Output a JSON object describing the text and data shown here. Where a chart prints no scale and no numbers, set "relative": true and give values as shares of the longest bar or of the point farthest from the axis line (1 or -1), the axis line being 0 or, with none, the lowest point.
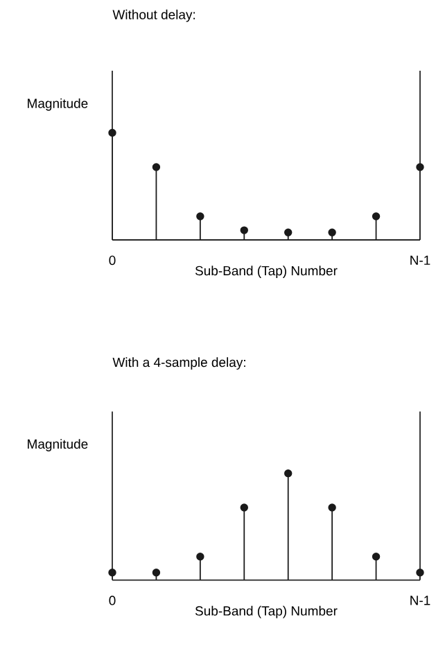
{
  "chart_data": [
    {
      "type": "lollipop",
      "title": "Without delay:",
      "ylabel": "Magnitude",
      "xlabel": "Sub-Band (Tap) Number",
      "categories": [
        "0",
        null,
        null,
        null,
        null,
        null,
        null,
        "N-1"
      ],
      "values": [
        1,
        0.68,
        0.22,
        0.09,
        0.07,
        0.07,
        0.22,
        0.68
      ],
      "relative": true,
      "color": "#1a1a1a",
      "marker": "circle"
    },
    {
      "type": "lollipop",
      "title": "With a 4-sample delay:",
      "ylabel": "Magnitude",
      "xlabel": "Sub-Band (Tap) Number",
      "categories": [
        "0",
        null,
        null,
        null,
        null,
        null,
        null,
        "N-1"
      ],
      "values": [
        0.07,
        0.07,
        0.22,
        0.68,
        1,
        0.68,
        0.22,
        0.07
      ],
      "relative": true,
      "color": "#1a1a1a",
      "marker": "circle"
    }
  ]
}
